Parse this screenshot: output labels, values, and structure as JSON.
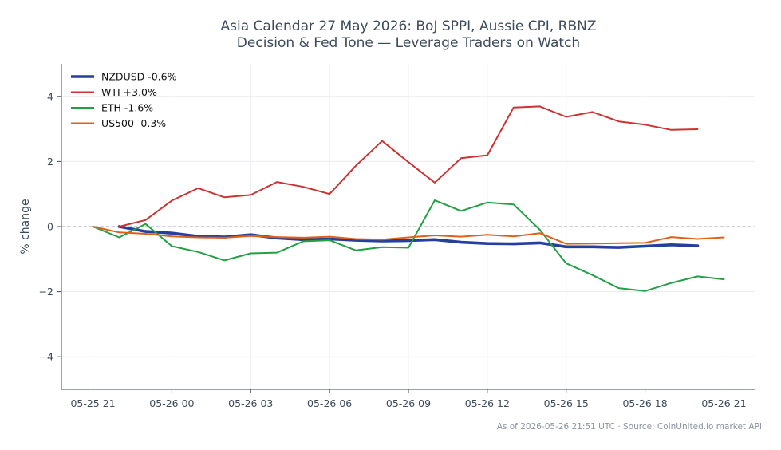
{
  "chart_data": {
    "type": "line",
    "title_lines": [
      "Asia Calendar 27 May 2026: BoJ SPPI, Aussie CPI, RBNZ",
      "Decision & Fed Tone — Leverage Traders on Watch"
    ],
    "xlabel": "",
    "ylabel": "% change",
    "ylim": [
      -5,
      5
    ],
    "yticks": [
      -4,
      -2,
      0,
      2,
      4
    ],
    "ytick_labels": [
      "−4",
      "−2",
      "0",
      "2",
      "4"
    ],
    "xlim": [
      -1.2,
      25.2
    ],
    "xticks": [
      0,
      3,
      6,
      9,
      12,
      15,
      18,
      21,
      24
    ],
    "xtick_labels": [
      "05-25 21",
      "05-26 00",
      "05-26 03",
      "05-26 06",
      "05-26 09",
      "05-26 12",
      "05-26 15",
      "05-26 18",
      "05-26 21"
    ],
    "x_unit": "hours from 05-25 21:00",
    "grid": true,
    "zero_line": true,
    "legend_position": "top-left",
    "series": [
      {
        "name": "NZDUSD -0.6%",
        "color": "#253f9e",
        "width": "thick",
        "x": [
          1,
          2,
          3,
          4,
          5,
          6,
          7,
          8,
          9,
          10,
          11,
          12,
          13,
          14,
          15,
          16,
          17,
          18,
          19,
          20,
          21,
          22,
          23
        ],
        "values": [
          0.0,
          -0.15,
          -0.2,
          -0.3,
          -0.32,
          -0.25,
          -0.35,
          -0.4,
          -0.38,
          -0.42,
          -0.44,
          -0.43,
          -0.4,
          -0.48,
          -0.52,
          -0.53,
          -0.5,
          -0.62,
          -0.62,
          -0.64,
          -0.6,
          -0.56,
          -0.59
        ]
      },
      {
        "name": "WTI +3.0%",
        "color": "#cc3333",
        "width": "normal",
        "x": [
          1,
          2,
          3,
          4,
          5,
          6,
          7,
          8,
          9,
          10,
          11,
          12,
          13,
          14,
          15,
          16,
          17,
          18,
          19,
          20,
          21,
          22,
          23
        ],
        "values": [
          0.0,
          0.2,
          0.8,
          1.18,
          0.9,
          0.97,
          1.37,
          1.22,
          1.0,
          1.87,
          2.63,
          1.98,
          1.35,
          2.1,
          2.19,
          3.66,
          3.69,
          3.37,
          3.52,
          3.23,
          3.13,
          2.97,
          2.99
        ]
      },
      {
        "name": "ETH -1.6%",
        "color": "#22a045",
        "width": "normal",
        "x": [
          0,
          1,
          2,
          3,
          4,
          5,
          6,
          7,
          8,
          9,
          10,
          11,
          12,
          13,
          14,
          15,
          16,
          17,
          18,
          19,
          20,
          21,
          22,
          23,
          24
        ],
        "values": [
          0.0,
          -0.33,
          0.08,
          -0.6,
          -0.78,
          -1.04,
          -0.82,
          -0.8,
          -0.45,
          -0.42,
          -0.73,
          -0.63,
          -0.65,
          0.81,
          0.48,
          0.74,
          0.68,
          -0.1,
          -1.13,
          -1.49,
          -1.89,
          -1.98,
          -1.73,
          -1.53,
          -1.62
        ]
      },
      {
        "name": "US500 -0.3%",
        "color": "#e06018",
        "width": "normal",
        "x": [
          0,
          1,
          2,
          3,
          4,
          5,
          6,
          7,
          8,
          9,
          10,
          11,
          12,
          13,
          14,
          15,
          16,
          17,
          18,
          19,
          20,
          21,
          22,
          23,
          24
        ],
        "values": [
          0.0,
          -0.18,
          -0.22,
          -0.3,
          -0.33,
          -0.34,
          -0.29,
          -0.32,
          -0.34,
          -0.31,
          -0.38,
          -0.4,
          -0.33,
          -0.27,
          -0.31,
          -0.25,
          -0.3,
          -0.2,
          -0.53,
          -0.52,
          -0.51,
          -0.5,
          -0.32,
          -0.38,
          -0.33
        ]
      }
    ]
  },
  "footer": {
    "text": "As of 2026-05-26 21:51 UTC · Source: CoinUnited.io market API"
  },
  "colors": {
    "axis": "#3d4a5c",
    "grid": "#ececf0",
    "zero_line": "#9aa4b2"
  }
}
